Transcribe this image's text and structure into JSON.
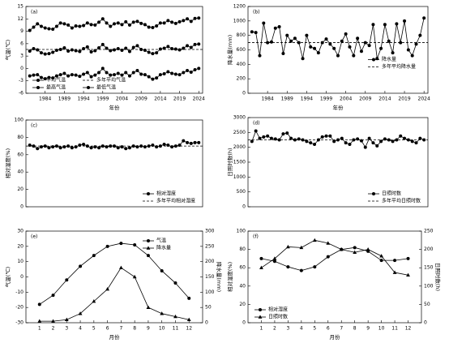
{
  "chart_data": [
    {
      "type": "line",
      "label": "(a)",
      "xlabel": "年份",
      "ylabel": "气温(℃)",
      "x": [
        1980,
        1981,
        1982,
        1983,
        1984,
        1985,
        1986,
        1987,
        1988,
        1989,
        1990,
        1991,
        1992,
        1993,
        1994,
        1995,
        1996,
        1997,
        1998,
        1999,
        2000,
        2001,
        2002,
        2003,
        2004,
        2005,
        2006,
        2007,
        2008,
        2009,
        2010,
        2011,
        2012,
        2013,
        2014,
        2015,
        2016,
        2017,
        2018,
        2019,
        2020,
        2021,
        2022,
        2023,
        2024
      ],
      "xlim": [
        1979,
        2025
      ],
      "xticks": [
        1984,
        1989,
        1994,
        1999,
        2004,
        2009,
        2014,
        2019,
        2024
      ],
      "ylim": [
        -6,
        15
      ],
      "yticks": [
        -6,
        -3,
        0,
        3,
        6,
        9,
        12,
        15
      ],
      "legend": "lower-left",
      "legend_columns": 2,
      "series": [
        {
          "name": "平均气温",
          "color": "#000000",
          "marker": "circle",
          "values": [
            4.2,
            4.8,
            4.5,
            3.8,
            3.5,
            3.6,
            3.9,
            4.4,
            4.6,
            5.0,
            4.2,
            4.5,
            4.3,
            4.1,
            4.8,
            5.2,
            4.0,
            4.3,
            5.0,
            5.8,
            4.9,
            4.3,
            4.5,
            4.8,
            4.4,
            4.9,
            4.1,
            5.1,
            5.5,
            4.6,
            4.4,
            3.9,
            3.6,
            3.8,
            4.7,
            4.9,
            5.3,
            4.8,
            4.7,
            4.5,
            4.9,
            5.5,
            5.1,
            5.8,
            5.9
          ]
        },
        {
          "name": "多年平均气温",
          "color": "#000000",
          "style": "dashed",
          "value": 4.6
        },
        {
          "name": "最高气温",
          "color": "#000000",
          "marker": "circle",
          "values": [
            9.2,
            10.0,
            10.8,
            10.2,
            9.8,
            9.6,
            9.5,
            10.2,
            11.0,
            10.8,
            10.5,
            9.8,
            10.3,
            10.2,
            10.4,
            11.0,
            10.6,
            10.5,
            11.2,
            12.0,
            11.0,
            10.2,
            10.8,
            11.0,
            10.6,
            11.3,
            10.5,
            11.2,
            11.4,
            10.9,
            10.6,
            10.0,
            9.9,
            10.3,
            11.0,
            11.0,
            11.6,
            11.2,
            10.9,
            11.3,
            11.6,
            12.0,
            11.4,
            12.1,
            12.2
          ]
        },
        {
          "name": "最低气温",
          "color": "#000000",
          "marker": "circle",
          "values": [
            -1.8,
            -1.6,
            -1.5,
            -2.2,
            -2.5,
            -2.2,
            -2.3,
            -1.8,
            -1.5,
            -1.2,
            -1.8,
            -1.5,
            -1.6,
            -1.9,
            -1.4,
            -1.0,
            -2.0,
            -1.6,
            -1.0,
            0.0,
            -1.0,
            -1.6,
            -1.5,
            -1.2,
            -1.6,
            -1.0,
            -1.8,
            -1.0,
            -0.5,
            -1.4,
            -1.5,
            -2.0,
            -2.6,
            -2.3,
            -1.5,
            -1.3,
            -0.8,
            -1.2,
            -1.4,
            -1.5,
            -1.0,
            -0.5,
            -0.9,
            -0.3,
            0.0
          ]
        }
      ]
    },
    {
      "type": "line",
      "label": "(b)",
      "xlabel": "年份",
      "ylabel": "降水量(mm)",
      "x": [
        1980,
        1981,
        1982,
        1983,
        1984,
        1985,
        1986,
        1987,
        1988,
        1989,
        1990,
        1991,
        1992,
        1993,
        1994,
        1995,
        1996,
        1997,
        1998,
        1999,
        2000,
        2001,
        2002,
        2003,
        2004,
        2005,
        2006,
        2007,
        2008,
        2009,
        2010,
        2011,
        2012,
        2013,
        2014,
        2015,
        2016,
        2017,
        2018,
        2019,
        2020,
        2021,
        2022,
        2023,
        2024
      ],
      "xlim": [
        1979,
        2025
      ],
      "xticks": [
        1984,
        1989,
        1994,
        1999,
        2004,
        2009,
        2014,
        2019,
        2024
      ],
      "ylim": [
        0,
        1200
      ],
      "yticks": [
        0,
        200,
        400,
        600,
        800,
        1000,
        1200
      ],
      "legend": "center-right",
      "legend_columns": 1,
      "series": [
        {
          "name": "降水量",
          "color": "#000000",
          "marker": "circle",
          "values": [
            850,
            840,
            520,
            970,
            700,
            710,
            900,
            920,
            550,
            800,
            720,
            760,
            700,
            480,
            800,
            640,
            620,
            560,
            700,
            750,
            680,
            620,
            520,
            720,
            820,
            640,
            520,
            760,
            580,
            700,
            660,
            950,
            480,
            620,
            950,
            720,
            560,
            960,
            700,
            1000,
            600,
            520,
            680,
            800,
            1040
          ]
        },
        {
          "name": "多年平均降水量",
          "color": "#000000",
          "style": "dashed",
          "value": 700
        }
      ]
    },
    {
      "type": "line",
      "label": "(c)",
      "ylabel": "相对湿度(%)",
      "x": [
        1980,
        1981,
        1982,
        1983,
        1984,
        1985,
        1986,
        1987,
        1988,
        1989,
        1990,
        1991,
        1992,
        1993,
        1994,
        1995,
        1996,
        1997,
        1998,
        1999,
        2000,
        2001,
        2002,
        2003,
        2004,
        2005,
        2006,
        2007,
        2008,
        2009,
        2010,
        2011,
        2012,
        2013,
        2014,
        2015,
        2016,
        2017,
        2018,
        2019,
        2020,
        2021,
        2022,
        2023,
        2024
      ],
      "xlim": [
        1979,
        2025
      ],
      "ylim": [
        0,
        100
      ],
      "yticks": [
        0,
        20,
        40,
        60,
        80,
        100
      ],
      "legend": "lower-right",
      "legend_columns": 1,
      "series": [
        {
          "name": "相对湿度",
          "color": "#000000",
          "marker": "circle",
          "values": [
            71,
            70,
            67,
            69,
            70,
            68,
            69,
            70,
            68,
            69,
            70,
            68,
            69,
            71,
            72,
            70,
            68,
            69,
            68,
            70,
            69,
            70,
            70,
            68,
            69,
            67,
            68,
            70,
            69,
            70,
            69,
            70,
            71,
            69,
            70,
            72,
            71,
            69,
            70,
            71,
            76,
            74,
            73,
            74,
            74
          ]
        },
        {
          "name": "多年平均相对湿度",
          "color": "#000000",
          "style": "dashed",
          "value": 70
        }
      ]
    },
    {
      "type": "line",
      "label": "(d)",
      "ylabel": "日照时数(h)",
      "x": [
        1980,
        1981,
        1982,
        1983,
        1984,
        1985,
        1986,
        1987,
        1988,
        1989,
        1990,
        1991,
        1992,
        1993,
        1994,
        1995,
        1996,
        1997,
        1998,
        1999,
        2000,
        2001,
        2002,
        2003,
        2004,
        2005,
        2006,
        2007,
        2008,
        2009,
        2010,
        2011,
        2012,
        2013,
        2014,
        2015,
        2016,
        2017,
        2018,
        2019,
        2020,
        2021,
        2022,
        2023,
        2024
      ],
      "xlim": [
        1979,
        2025
      ],
      "ylim": [
        0,
        3000
      ],
      "yticks": [
        0,
        500,
        1000,
        1500,
        2000,
        2500,
        3000
      ],
      "legend": "lower-right",
      "legend_columns": 1,
      "series": [
        {
          "name": "日照时数",
          "color": "#000000",
          "marker": "circle",
          "values": [
            2200,
            2550,
            2300,
            2350,
            2380,
            2300,
            2280,
            2250,
            2450,
            2480,
            2300,
            2250,
            2280,
            2250,
            2200,
            2150,
            2100,
            2250,
            2350,
            2380,
            2380,
            2200,
            2250,
            2300,
            2150,
            2100,
            2250,
            2280,
            2220,
            2000,
            2300,
            2150,
            2050,
            2200,
            2280,
            2250,
            2200,
            2250,
            2380,
            2300,
            2250,
            2200,
            2150,
            2300,
            2250
          ]
        },
        {
          "name": "多年平均日照时数",
          "color": "#000000",
          "style": "dashed",
          "value": 2250
        }
      ]
    },
    {
      "type": "line",
      "label": "(e)",
      "xlabel": "月份",
      "ylabel": "气温(℃)",
      "y2label": "降水量(mm)",
      "x": [
        1,
        2,
        3,
        4,
        5,
        6,
        7,
        8,
        9,
        10,
        11,
        12
      ],
      "xlim": [
        0,
        13
      ],
      "xticks": [
        1,
        2,
        3,
        4,
        5,
        6,
        7,
        8,
        9,
        10,
        11,
        12
      ],
      "ylim": [
        -30,
        30
      ],
      "yticks": [
        -30,
        -20,
        -10,
        0,
        10,
        20,
        30
      ],
      "y2lim": [
        0,
        300
      ],
      "y2ticks": [
        0,
        50,
        100,
        150,
        200,
        250,
        300
      ],
      "legend": "upper-right",
      "legend_columns": 1,
      "series": [
        {
          "name": "气温",
          "color": "#000000",
          "marker": "circle",
          "values": [
            -18,
            -12,
            -2,
            7,
            14,
            20,
            22,
            21,
            14,
            4,
            -4,
            -14
          ]
        },
        {
          "name": "降水量",
          "color": "#000000",
          "marker": "triangle",
          "axis": "y2",
          "values": [
            5,
            5,
            10,
            30,
            70,
            110,
            180,
            150,
            50,
            30,
            20,
            10
          ]
        }
      ]
    },
    {
      "type": "line",
      "label": "(f)",
      "xlabel": "月份",
      "ylabel": "相对湿度(%)",
      "y2label": "日照时数(h)",
      "x": [
        1,
        2,
        3,
        4,
        5,
        6,
        7,
        8,
        9,
        10,
        11,
        12
      ],
      "xlim": [
        0,
        13
      ],
      "xticks": [
        1,
        2,
        3,
        4,
        5,
        6,
        7,
        8,
        9,
        10,
        11,
        12
      ],
      "ylim": [
        0,
        100
      ],
      "yticks": [
        0,
        20,
        40,
        60,
        80,
        100
      ],
      "y2lim": [
        0,
        250
      ],
      "y2ticks": [
        0,
        50,
        100,
        150,
        200,
        250
      ],
      "legend": "lower-left",
      "legend_columns": 1,
      "series": [
        {
          "name": "相对湿度",
          "color": "#000000",
          "marker": "circle",
          "values": [
            70,
            67,
            61,
            57,
            61,
            72,
            80,
            82,
            78,
            68,
            68,
            70
          ]
        },
        {
          "name": "日照时数",
          "color": "#000000",
          "marker": "triangle",
          "axis": "y2",
          "values": [
            150,
            175,
            207,
            205,
            225,
            217,
            200,
            192,
            200,
            182,
            137,
            130
          ]
        }
      ]
    }
  ]
}
